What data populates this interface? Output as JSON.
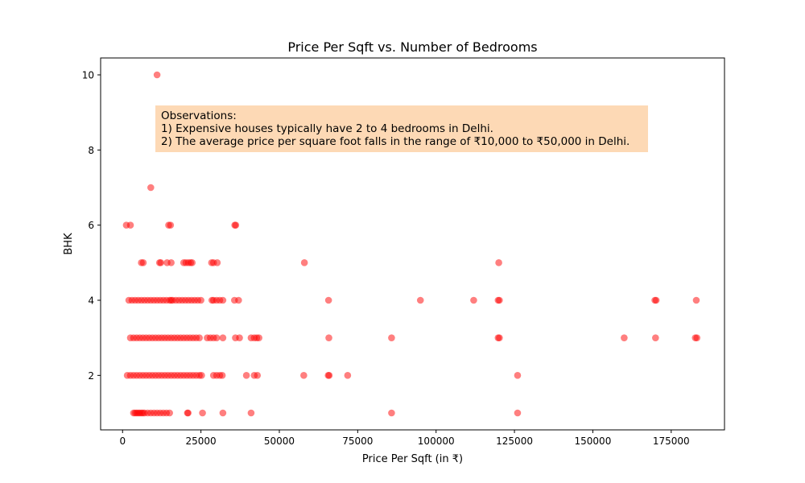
{
  "chart_data": {
    "type": "scatter",
    "title": "Price Per Sqft vs. Number of Bedrooms",
    "xlabel": "Price Per Sqft (in ₹)",
    "ylabel": "BHK",
    "xlim": [
      -7000,
      192000
    ],
    "ylim": [
      0.55,
      10.45
    ],
    "xticks": [
      0,
      25000,
      50000,
      75000,
      100000,
      125000,
      150000,
      175000
    ],
    "yticks": [
      2,
      4,
      6,
      8,
      10
    ],
    "grid": false,
    "marker_color": "#ff0000",
    "marker_alpha": 0.5,
    "annotation": {
      "lines": [
        "Observations:",
        "1) Expensive houses typically have 2 to 4 bedrooms in Delhi.",
        "2) The average price per square foot falls in the range of ₹10,000 to ₹50,000 in Delhi."
      ],
      "background": "#fdd9b5",
      "text_color": "#555555"
    },
    "points": [
      [
        11000,
        10
      ],
      [
        9000,
        7
      ],
      [
        1200,
        6
      ],
      [
        2500,
        6
      ],
      [
        14700,
        6
      ],
      [
        15300,
        6
      ],
      [
        35800,
        6
      ],
      [
        36100,
        6
      ],
      [
        6000,
        5
      ],
      [
        6600,
        5
      ],
      [
        11800,
        5
      ],
      [
        12200,
        5
      ],
      [
        14200,
        5
      ],
      [
        15500,
        5
      ],
      [
        19500,
        5
      ],
      [
        20200,
        5
      ],
      [
        21000,
        5
      ],
      [
        21700,
        5
      ],
      [
        22200,
        5
      ],
      [
        28400,
        5
      ],
      [
        29000,
        5
      ],
      [
        30200,
        5
      ],
      [
        58000,
        5
      ],
      [
        120000,
        5
      ],
      [
        2000,
        4
      ],
      [
        3000,
        4
      ],
      [
        4000,
        4
      ],
      [
        5000,
        4
      ],
      [
        6000,
        4
      ],
      [
        7000,
        4
      ],
      [
        8000,
        4
      ],
      [
        9000,
        4
      ],
      [
        10000,
        4
      ],
      [
        11000,
        4
      ],
      [
        12000,
        4
      ],
      [
        13000,
        4
      ],
      [
        14000,
        4
      ],
      [
        15000,
        4
      ],
      [
        15500,
        4
      ],
      [
        16000,
        4
      ],
      [
        17000,
        4
      ],
      [
        18000,
        4
      ],
      [
        19000,
        4
      ],
      [
        20000,
        4
      ],
      [
        21000,
        4
      ],
      [
        22000,
        4
      ],
      [
        23000,
        4
      ],
      [
        24000,
        4
      ],
      [
        25000,
        4
      ],
      [
        28500,
        4
      ],
      [
        29000,
        4
      ],
      [
        30000,
        4
      ],
      [
        31000,
        4
      ],
      [
        32000,
        4
      ],
      [
        35700,
        4
      ],
      [
        37000,
        4
      ],
      [
        65700,
        4
      ],
      [
        95000,
        4
      ],
      [
        112000,
        4
      ],
      [
        119800,
        4
      ],
      [
        120200,
        4
      ],
      [
        169800,
        4
      ],
      [
        170200,
        4
      ],
      [
        183000,
        4
      ],
      [
        2500,
        3
      ],
      [
        3500,
        3
      ],
      [
        4500,
        3
      ],
      [
        5500,
        3
      ],
      [
        6500,
        3
      ],
      [
        7500,
        3
      ],
      [
        8500,
        3
      ],
      [
        9500,
        3
      ],
      [
        10500,
        3
      ],
      [
        11500,
        3
      ],
      [
        12500,
        3
      ],
      [
        13500,
        3
      ],
      [
        14500,
        3
      ],
      [
        15500,
        3
      ],
      [
        16500,
        3
      ],
      [
        17500,
        3
      ],
      [
        18500,
        3
      ],
      [
        19500,
        3
      ],
      [
        20500,
        3
      ],
      [
        21500,
        3
      ],
      [
        22500,
        3
      ],
      [
        23500,
        3
      ],
      [
        24500,
        3
      ],
      [
        27000,
        3
      ],
      [
        28000,
        3
      ],
      [
        29000,
        3
      ],
      [
        30000,
        3
      ],
      [
        32000,
        3
      ],
      [
        36000,
        3
      ],
      [
        37300,
        3
      ],
      [
        41000,
        3
      ],
      [
        42000,
        3
      ],
      [
        42800,
        3
      ],
      [
        43500,
        3
      ],
      [
        65800,
        3
      ],
      [
        85800,
        3
      ],
      [
        119800,
        3
      ],
      [
        120200,
        3
      ],
      [
        160000,
        3
      ],
      [
        170000,
        3
      ],
      [
        182700,
        3
      ],
      [
        183200,
        3
      ],
      [
        1500,
        2
      ],
      [
        2500,
        2
      ],
      [
        3500,
        2
      ],
      [
        4500,
        2
      ],
      [
        5500,
        2
      ],
      [
        6500,
        2
      ],
      [
        7500,
        2
      ],
      [
        8500,
        2
      ],
      [
        9500,
        2
      ],
      [
        10500,
        2
      ],
      [
        11500,
        2
      ],
      [
        12500,
        2
      ],
      [
        13500,
        2
      ],
      [
        14500,
        2
      ],
      [
        15500,
        2
      ],
      [
        16500,
        2
      ],
      [
        17500,
        2
      ],
      [
        18500,
        2
      ],
      [
        19500,
        2
      ],
      [
        20500,
        2
      ],
      [
        21500,
        2
      ],
      [
        22500,
        2
      ],
      [
        23500,
        2
      ],
      [
        24500,
        2
      ],
      [
        25200,
        2
      ],
      [
        29000,
        2
      ],
      [
        30000,
        2
      ],
      [
        31000,
        2
      ],
      [
        31800,
        2
      ],
      [
        39500,
        2
      ],
      [
        42000,
        2
      ],
      [
        43000,
        2
      ],
      [
        57800,
        2
      ],
      [
        65600,
        2
      ],
      [
        65900,
        2
      ],
      [
        71800,
        2
      ],
      [
        126000,
        2
      ],
      [
        3500,
        1
      ],
      [
        4000,
        1
      ],
      [
        4500,
        1
      ],
      [
        5000,
        1
      ],
      [
        5500,
        1
      ],
      [
        6000,
        1
      ],
      [
        6500,
        1
      ],
      [
        7000,
        1
      ],
      [
        8000,
        1
      ],
      [
        9000,
        1
      ],
      [
        10000,
        1
      ],
      [
        11000,
        1
      ],
      [
        12000,
        1
      ],
      [
        13000,
        1
      ],
      [
        14000,
        1
      ],
      [
        15000,
        1
      ],
      [
        20700,
        1
      ],
      [
        20900,
        1
      ],
      [
        25500,
        1
      ],
      [
        32000,
        1
      ],
      [
        41000,
        1
      ],
      [
        85800,
        1
      ],
      [
        126000,
        1
      ]
    ]
  }
}
